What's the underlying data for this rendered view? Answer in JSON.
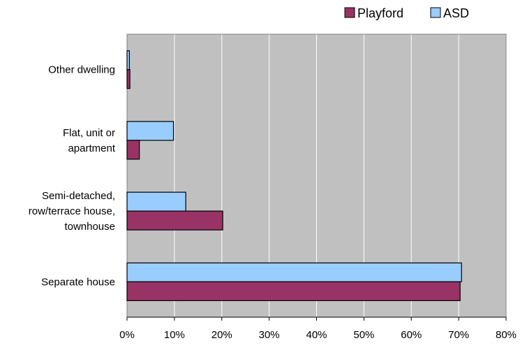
{
  "chart_data": {
    "type": "bar",
    "orientation": "horizontal",
    "categories": [
      "Other dwelling",
      "Flat, unit or apartment",
      "Semi-detached, row/terrace house, townhouse",
      "Separate house"
    ],
    "category_lines": [
      [
        "Other dwelling"
      ],
      [
        "Flat, unit or",
        "apartment"
      ],
      [
        "Semi-detached,",
        "row/terrace house,",
        "townhouse"
      ],
      [
        "Separate house"
      ]
    ],
    "series": [
      {
        "name": "Playford",
        "color": "#993366",
        "values": [
          0.6,
          2.6,
          20.2,
          70.3
        ]
      },
      {
        "name": "ASD",
        "color": "#99ccff",
        "values": [
          0.5,
          9.8,
          12.4,
          70.6
        ]
      }
    ],
    "x_ticks": [
      "0%",
      "10%",
      "20%",
      "30%",
      "40%",
      "50%",
      "60%",
      "70%",
      "80%"
    ],
    "xlim": [
      0,
      80
    ],
    "grid": true,
    "plot_background": "#c0c0c0",
    "legend_position": "top-right"
  }
}
